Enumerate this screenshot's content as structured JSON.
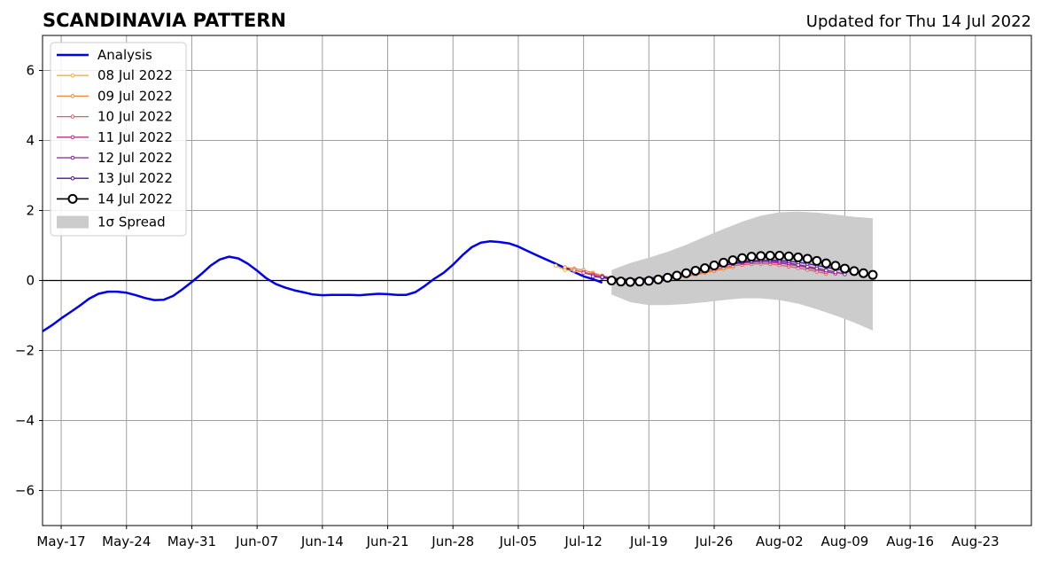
{
  "chart_data": {
    "type": "line",
    "title": "SCANDINAVIA PATTERN",
    "subtitle": "Updated for Thu 14 Jul 2022",
    "xlabel": "",
    "ylabel": "",
    "x_range": [
      "2022-05-15",
      "2022-08-29"
    ],
    "ylim": [
      -7,
      7
    ],
    "grid": true,
    "legend_position": "top-left",
    "x_ticks": [
      {
        "date": "2022-05-17",
        "label": "May-17"
      },
      {
        "date": "2022-05-24",
        "label": "May-24"
      },
      {
        "date": "2022-05-31",
        "label": "May-31"
      },
      {
        "date": "2022-06-07",
        "label": "Jun-07"
      },
      {
        "date": "2022-06-14",
        "label": "Jun-14"
      },
      {
        "date": "2022-06-21",
        "label": "Jun-21"
      },
      {
        "date": "2022-06-28",
        "label": "Jun-28"
      },
      {
        "date": "2022-07-05",
        "label": "Jul-05"
      },
      {
        "date": "2022-07-12",
        "label": "Jul-12"
      },
      {
        "date": "2022-07-19",
        "label": "Jul-19"
      },
      {
        "date": "2022-07-26",
        "label": "Jul-26"
      },
      {
        "date": "2022-08-02",
        "label": "Aug-02"
      },
      {
        "date": "2022-08-09",
        "label": "Aug-09"
      },
      {
        "date": "2022-08-16",
        "label": "Aug-16"
      },
      {
        "date": "2022-08-23",
        "label": "Aug-23"
      }
    ],
    "y_ticks": [
      {
        "value": -6,
        "label": "−6"
      },
      {
        "value": -4,
        "label": "−4"
      },
      {
        "value": -2,
        "label": "−2"
      },
      {
        "value": 0,
        "label": "0"
      },
      {
        "value": 2,
        "label": "2"
      },
      {
        "value": 4,
        "label": "4"
      },
      {
        "value": 6,
        "label": "6"
      }
    ],
    "analysis": {
      "name": "Analysis",
      "color": "#0000ee",
      "dates": [
        "2022-05-15",
        "2022-05-16",
        "2022-05-17",
        "2022-05-18",
        "2022-05-19",
        "2022-05-20",
        "2022-05-21",
        "2022-05-22",
        "2022-05-23",
        "2022-05-24",
        "2022-05-25",
        "2022-05-26",
        "2022-05-27",
        "2022-05-28",
        "2022-05-29",
        "2022-05-30",
        "2022-05-31",
        "2022-06-01",
        "2022-06-02",
        "2022-06-03",
        "2022-06-04",
        "2022-06-05",
        "2022-06-06",
        "2022-06-07",
        "2022-06-08",
        "2022-06-09",
        "2022-06-10",
        "2022-06-11",
        "2022-06-12",
        "2022-06-13",
        "2022-06-14",
        "2022-06-15",
        "2022-06-16",
        "2022-06-17",
        "2022-06-18",
        "2022-06-19",
        "2022-06-20",
        "2022-06-21",
        "2022-06-22",
        "2022-06-23",
        "2022-06-24",
        "2022-06-25",
        "2022-06-26",
        "2022-06-27",
        "2022-06-28",
        "2022-06-29",
        "2022-06-30",
        "2022-07-01",
        "2022-07-02",
        "2022-07-03",
        "2022-07-04",
        "2022-07-05",
        "2022-07-06",
        "2022-07-07",
        "2022-07-08",
        "2022-07-09",
        "2022-07-10",
        "2022-07-11",
        "2022-07-12",
        "2022-07-13",
        "2022-07-14"
      ],
      "values": [
        -1.45,
        -1.28,
        -1.08,
        -0.9,
        -0.72,
        -0.52,
        -0.38,
        -0.32,
        -0.32,
        -0.35,
        -0.42,
        -0.5,
        -0.56,
        -0.55,
        -0.44,
        -0.25,
        -0.04,
        0.18,
        0.42,
        0.6,
        0.68,
        0.63,
        0.48,
        0.28,
        0.06,
        -0.1,
        -0.2,
        -0.28,
        -0.34,
        -0.4,
        -0.42,
        -0.41,
        -0.41,
        -0.41,
        -0.42,
        -0.4,
        -0.38,
        -0.39,
        -0.41,
        -0.41,
        -0.33,
        -0.15,
        0.05,
        0.22,
        0.45,
        0.72,
        0.95,
        1.08,
        1.12,
        1.1,
        1.06,
        0.97,
        0.84,
        0.72,
        0.6,
        0.48,
        0.36,
        0.24,
        0.12,
        0.04,
        -0.06
      ]
    },
    "forecasts": [
      {
        "name": "08 Jul 2022",
        "color": "#f7b32b",
        "start": "2022-07-09",
        "values": [
          0.42,
          0.3,
          0.28,
          0.24,
          0.18,
          0.12,
          0.08,
          0.05,
          0.03,
          0.03,
          0.03,
          0.05,
          0.07,
          0.1,
          0.13,
          0.18,
          0.22,
          0.27
        ]
      },
      {
        "name": "09 Jul 2022",
        "color": "#f0893c",
        "start": "2022-07-10",
        "values": [
          0.38,
          0.34,
          0.3,
          0.22,
          0.14,
          0.08,
          0.04,
          0.02,
          0.02,
          0.02,
          0.03,
          0.05,
          0.08,
          0.12,
          0.16,
          0.22,
          0.27,
          0.33,
          0.38
        ]
      },
      {
        "name": "10 Jul 2022",
        "color": "#dd5e66",
        "start": "2022-07-11",
        "values": [
          0.3,
          0.24,
          0.18,
          0.12,
          0.06,
          0.02,
          0.0,
          0.0,
          0.01,
          0.03,
          0.06,
          0.1,
          0.14,
          0.19,
          0.25,
          0.31,
          0.37,
          0.42,
          0.45,
          0.47,
          0.48,
          0.47,
          0.44,
          0.4,
          0.36,
          0.31,
          0.25,
          0.2
        ]
      },
      {
        "name": "11 Jul 2022",
        "color": "#b83289",
        "start": "2022-07-12",
        "values": [
          0.22,
          0.15,
          0.08,
          0.03,
          0.01,
          0.01,
          0.02,
          0.04,
          0.07,
          0.11,
          0.15,
          0.2,
          0.26,
          0.32,
          0.38,
          0.43,
          0.47,
          0.5,
          0.52,
          0.53,
          0.52,
          0.5,
          0.46,
          0.42,
          0.37,
          0.31,
          0.25,
          0.2
        ]
      },
      {
        "name": "12 Jul 2022",
        "color": "#8b20a0",
        "start": "2022-07-13",
        "values": [
          0.12,
          0.08,
          0.05,
          0.04,
          0.04,
          0.05,
          0.07,
          0.1,
          0.14,
          0.19,
          0.25,
          0.31,
          0.37,
          0.43,
          0.48,
          0.52,
          0.55,
          0.57,
          0.57,
          0.56,
          0.53,
          0.5,
          0.45,
          0.4,
          0.35,
          0.29,
          0.24,
          0.18
        ]
      },
      {
        "name": "13 Jul 2022",
        "color": "#4a14a0",
        "start": "2022-07-14",
        "values": [
          0.1,
          0.07,
          0.04,
          0.03,
          0.03,
          0.05,
          0.07,
          0.1,
          0.14,
          0.19,
          0.25,
          0.31,
          0.37,
          0.43,
          0.48,
          0.52,
          0.55,
          0.57,
          0.58,
          0.57,
          0.55,
          0.52,
          0.48,
          0.43,
          0.38,
          0.33,
          0.28,
          0.22
        ]
      },
      {
        "name": "14 Jul 2022",
        "color": "#000000",
        "start": "2022-07-15",
        "values": [
          0.0,
          -0.03,
          -0.04,
          -0.03,
          -0.01,
          0.03,
          0.08,
          0.14,
          0.21,
          0.28,
          0.35,
          0.43,
          0.51,
          0.58,
          0.64,
          0.68,
          0.7,
          0.71,
          0.71,
          0.69,
          0.66,
          0.62,
          0.56,
          0.49,
          0.42,
          0.34,
          0.27,
          0.21,
          0.16
        ]
      }
    ],
    "spread": {
      "name": "1σ Spread",
      "color": "#cccccc",
      "dates": [
        "2022-07-15",
        "2022-07-17",
        "2022-07-19",
        "2022-07-21",
        "2022-07-23",
        "2022-07-25",
        "2022-07-27",
        "2022-07-29",
        "2022-07-31",
        "2022-08-02",
        "2022-08-04",
        "2022-08-06",
        "2022-08-08",
        "2022-08-10",
        "2022-08-12"
      ],
      "upper": [
        0.3,
        0.5,
        0.65,
        0.82,
        1.02,
        1.25,
        1.47,
        1.68,
        1.85,
        1.95,
        1.97,
        1.94,
        1.88,
        1.82,
        1.78
      ],
      "lower": [
        -0.4,
        -0.62,
        -0.7,
        -0.7,
        -0.67,
        -0.62,
        -0.56,
        -0.51,
        -0.51,
        -0.56,
        -0.66,
        -0.82,
        -1.0,
        -1.2,
        -1.43
      ]
    },
    "legend": [
      "Analysis",
      "08 Jul 2022",
      "09 Jul 2022",
      "10 Jul 2022",
      "11 Jul 2022",
      "12 Jul 2022",
      "13 Jul 2022",
      "14 Jul 2022",
      "1σ Spread"
    ]
  }
}
